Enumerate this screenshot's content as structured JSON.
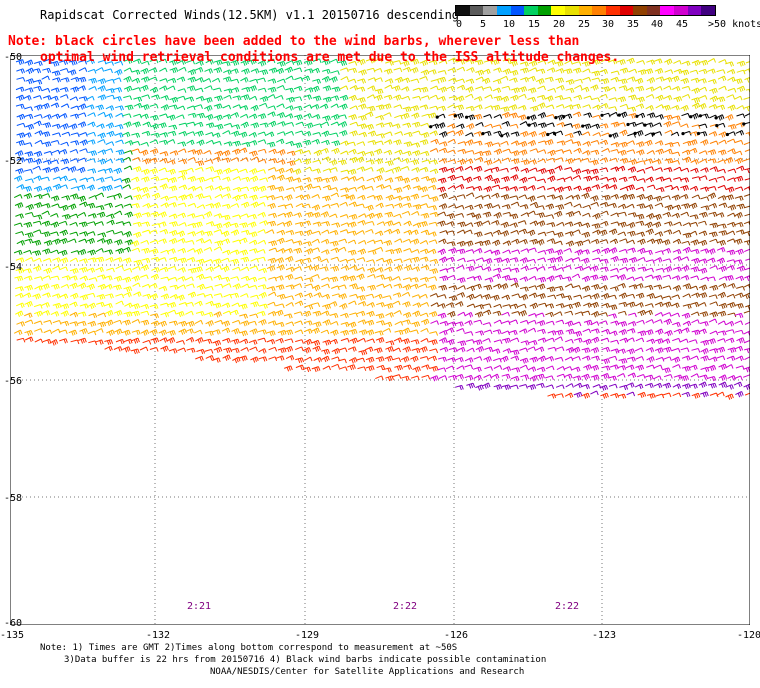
{
  "title": "Rapidscat Corrected Winds(12.5KM) v1.1 20150716 descending",
  "colorbar": {
    "labels": [
      "0",
      "5",
      "10",
      "15",
      "20",
      "25",
      "30",
      "35",
      "40",
      "45",
      ">50 knots"
    ],
    "colors": [
      "#101010",
      "#5a5a5a",
      "#a0a0a0",
      "#00a0ff",
      "#0055ff",
      "#00d060",
      "#00a000",
      "#ffff00",
      "#e8e000",
      "#ffb000",
      "#ff8000",
      "#ff3000",
      "#e00000",
      "#904000",
      "#803020",
      "#ff00ff",
      "#d000d0",
      "#8000c0",
      "#400080"
    ]
  },
  "note": {
    "line1": "Note: black circles have been added to the wind barbs, wherever less than",
    "line2": "optimal wind retrieval conditions are met due to the ISS altitude changes."
  },
  "map": {
    "lat_labels": [
      "-50",
      "-52",
      "-54",
      "-56",
      "-58",
      "-60"
    ],
    "lon_labels": [
      "-135",
      "-132",
      "-129",
      "-126",
      "-123",
      "-120"
    ],
    "pass_times": [
      "2:21",
      "2:22",
      "2:22"
    ]
  },
  "footer": {
    "line1": "Note: 1) Times are GMT 2)Times along bottom correspond to measurement at ~50S",
    "line2": "3)Data buffer is 22 hrs from 20150716 4) Black wind barbs indicate possible contamination",
    "line3": "NOAA/NESDIS/Center for Satellite Applications and Research"
  }
}
